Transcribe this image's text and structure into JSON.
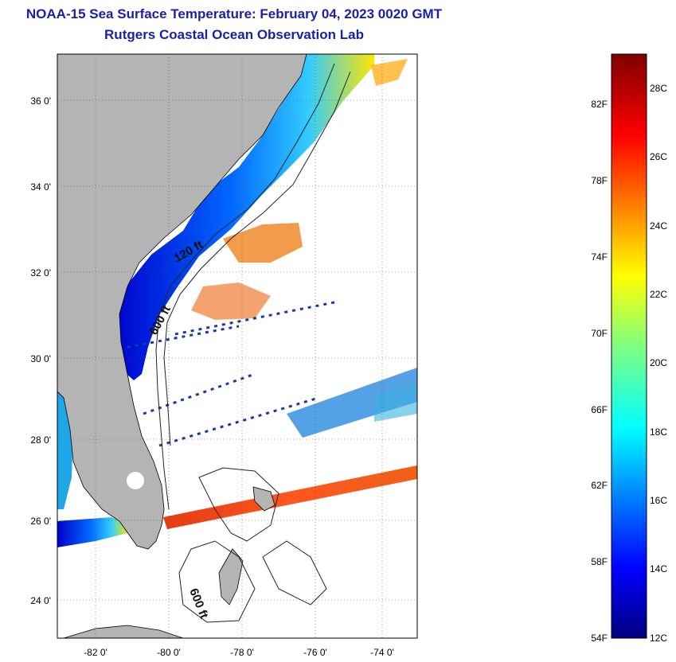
{
  "header": {
    "title": "NOAA-15 Sea Surface Temperature:  February 04, 2023 0020 GMT",
    "subtitle": "Rutgers Coastal Ocean Observation Lab"
  },
  "map": {
    "lat_ticks": [
      "36 0'",
      "34 0'",
      "32 0'",
      "30 0'",
      "28 0'",
      "26 0'",
      "24 0'"
    ],
    "lon_ticks": [
      "-82 0'",
      "-80 0'",
      "-78 0'",
      "-76 0'",
      "-74 0'"
    ],
    "lon_range": [
      -83,
      -73
    ],
    "lat_range": [
      23,
      37
    ],
    "isobath_labels": [
      "120 ft",
      "600 ft",
      "600 ft"
    ],
    "land_color": "#b4b4b4"
  },
  "colorbar": {
    "fahrenheit_labels": [
      "82F",
      "78F",
      "74F",
      "70F",
      "66F",
      "62F",
      "58F",
      "54F"
    ],
    "celsius_labels": [
      "28C",
      "26C",
      "24C",
      "22C",
      "20C",
      "18C",
      "16C",
      "14C",
      "12C"
    ],
    "range_c": [
      12,
      29
    ],
    "colormap": "jet"
  }
}
